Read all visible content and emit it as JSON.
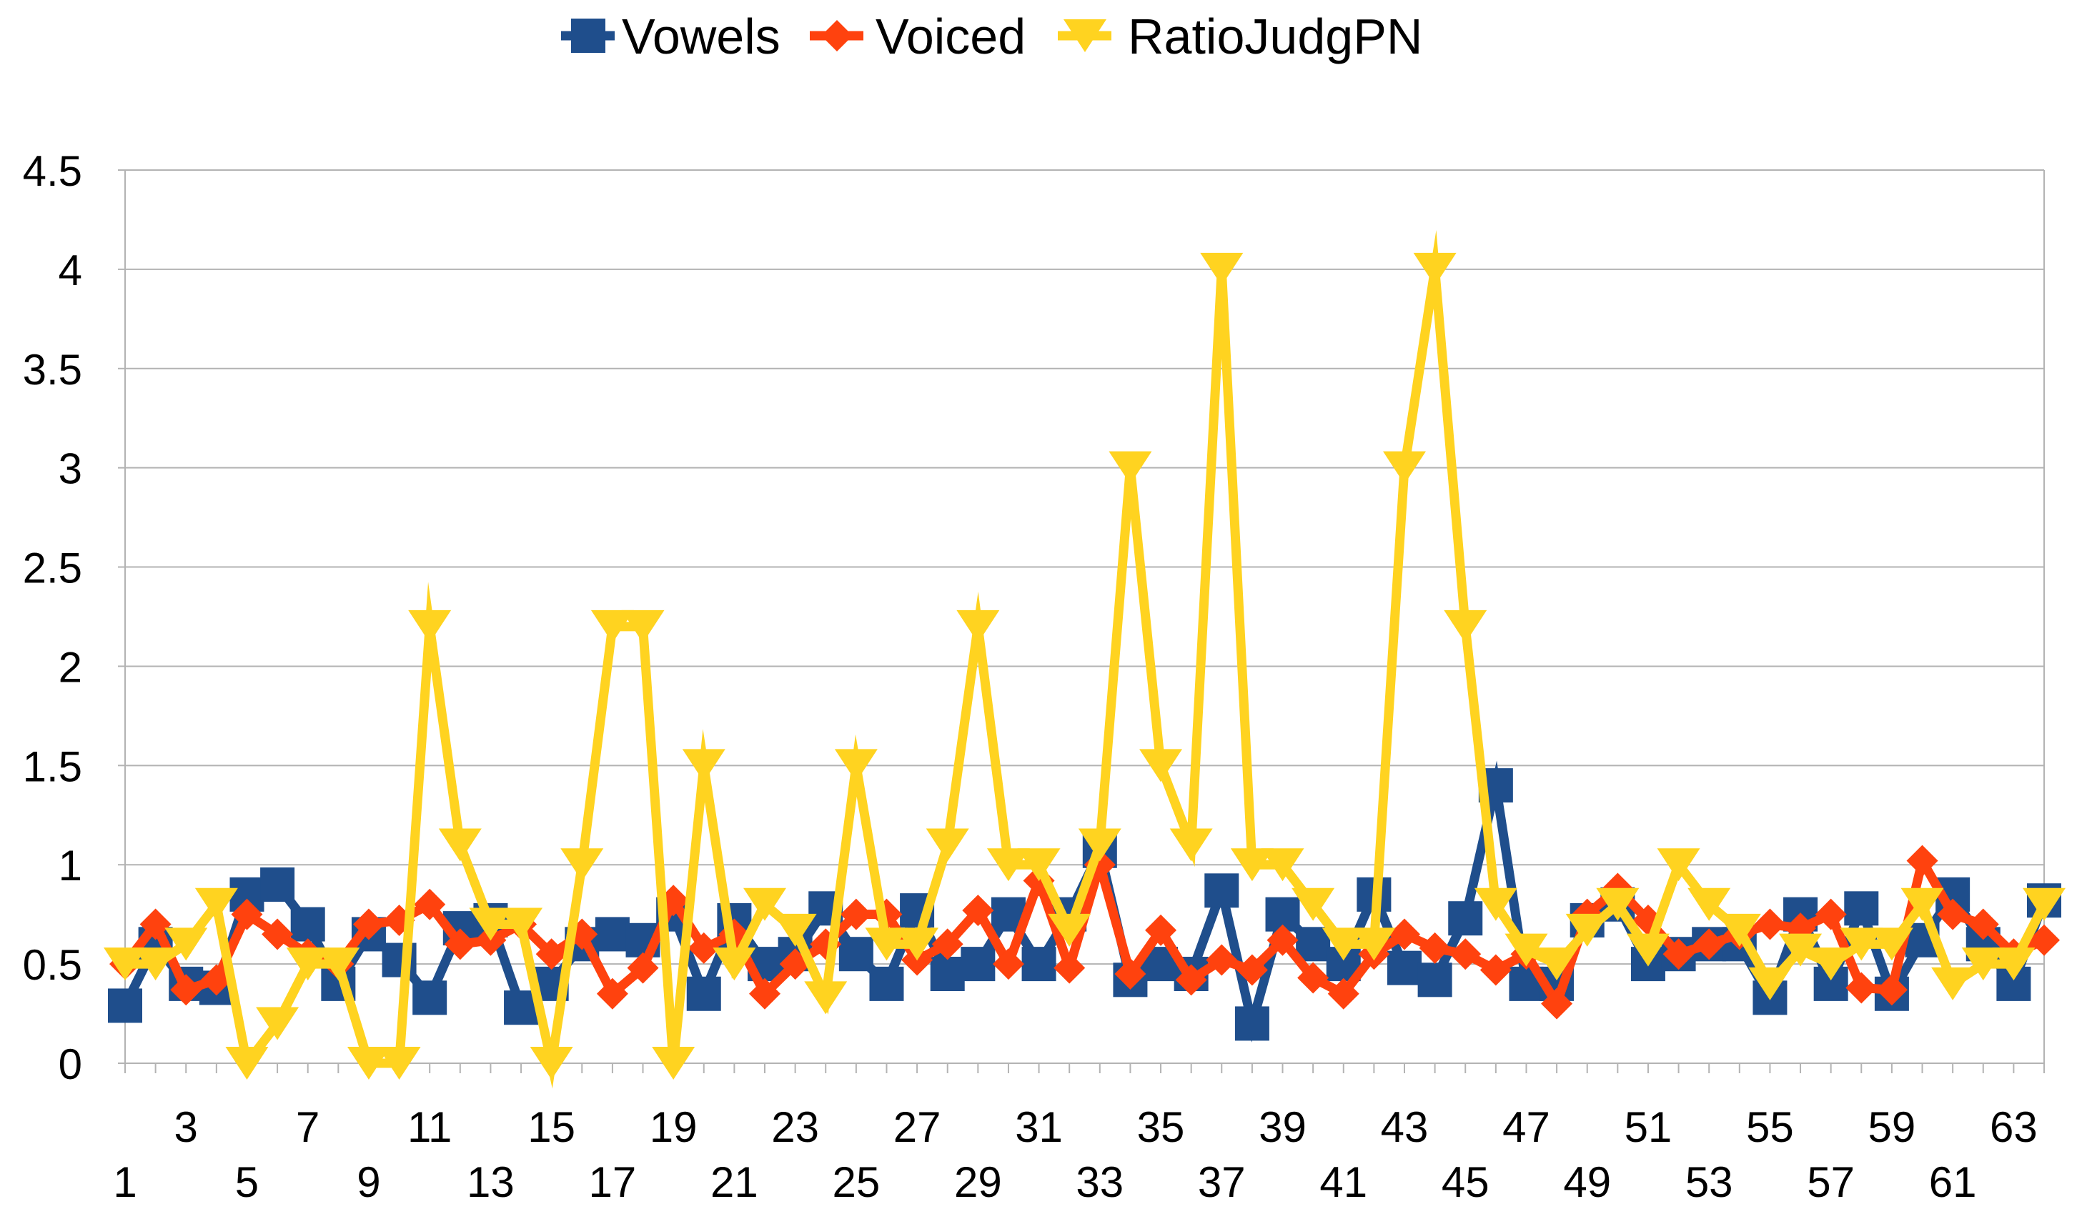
{
  "chart_data": {
    "type": "line",
    "title": "",
    "xlabel": "",
    "ylabel": "",
    "ylim": [
      0,
      4.5
    ],
    "yticks": [
      "0",
      "0.5",
      "1",
      "1.5",
      "2",
      "2.5",
      "3",
      "3.5",
      "4",
      "4.5"
    ],
    "ytick_values": [
      0,
      0.5,
      1,
      1.5,
      2,
      2.5,
      3,
      3.5,
      4,
      4.5
    ],
    "grid": true,
    "legend_position": "top-center",
    "x": [
      1,
      2,
      3,
      4,
      5,
      6,
      7,
      8,
      9,
      10,
      11,
      12,
      13,
      14,
      15,
      16,
      17,
      18,
      19,
      20,
      21,
      22,
      23,
      24,
      25,
      26,
      27,
      28,
      29,
      30,
      31,
      32,
      33,
      34,
      35,
      36,
      37,
      38,
      39,
      40,
      41,
      42,
      43,
      44,
      45,
      46,
      47,
      48,
      49,
      50,
      51,
      52,
      53,
      54,
      55,
      56,
      57,
      58,
      59,
      60,
      61,
      62,
      63,
      64
    ],
    "series": [
      {
        "name": "Vowels",
        "color": "#1f4e8c",
        "marker": "square",
        "values": [
          0.29,
          0.6,
          0.4,
          0.38,
          0.85,
          0.9,
          0.7,
          0.4,
          0.65,
          0.52,
          0.33,
          0.68,
          0.72,
          0.28,
          0.4,
          0.6,
          0.65,
          0.62,
          0.75,
          0.35,
          0.72,
          0.5,
          0.55,
          0.78,
          0.55,
          0.4,
          0.77,
          0.45,
          0.5,
          0.75,
          0.5,
          0.75,
          1.07,
          0.42,
          0.5,
          0.45,
          0.87,
          0.2,
          0.75,
          0.6,
          0.5,
          0.85,
          0.48,
          0.42,
          0.73,
          1.4,
          0.4,
          0.4,
          0.72,
          0.8,
          0.5,
          0.55,
          0.6,
          0.6,
          0.33,
          0.75,
          0.4,
          0.78,
          0.35,
          0.62,
          0.85,
          0.6,
          0.4,
          0.82
        ]
      },
      {
        "name": "Voiced",
        "color": "#ff420e",
        "marker": "diamond",
        "values": [
          0.5,
          0.7,
          0.37,
          0.42,
          0.75,
          0.65,
          0.55,
          0.5,
          0.7,
          0.72,
          0.8,
          0.6,
          0.62,
          0.7,
          0.55,
          0.65,
          0.35,
          0.48,
          0.82,
          0.58,
          0.65,
          0.35,
          0.5,
          0.6,
          0.75,
          0.75,
          0.52,
          0.6,
          0.77,
          0.5,
          0.92,
          0.48,
          1.0,
          0.45,
          0.67,
          0.42,
          0.52,
          0.47,
          0.62,
          0.43,
          0.35,
          0.55,
          0.65,
          0.58,
          0.55,
          0.47,
          0.55,
          0.3,
          0.75,
          0.88,
          0.72,
          0.55,
          0.6,
          0.65,
          0.7,
          0.68,
          0.75,
          0.38,
          0.37,
          1.02,
          0.75,
          0.7,
          0.55,
          0.62
        ]
      },
      {
        "name": "RatioJudgPN",
        "color": "#ffd320",
        "marker": "triangle-down",
        "values": [
          0.5,
          0.5,
          0.6,
          0.8,
          0.0,
          0.2,
          0.5,
          0.5,
          0.0,
          0.0,
          2.2,
          1.1,
          0.7,
          0.7,
          0.0,
          1.0,
          2.2,
          2.2,
          0.0,
          1.5,
          0.5,
          0.8,
          0.67,
          0.33,
          1.5,
          0.6,
          0.6,
          1.1,
          2.2,
          1.0,
          1.0,
          0.67,
          1.1,
          3.0,
          1.5,
          1.1,
          4.0,
          1.0,
          1.0,
          0.8,
          0.6,
          0.6,
          3.0,
          4.0,
          2.2,
          0.8,
          0.57,
          0.5,
          0.67,
          0.8,
          0.57,
          1.0,
          0.8,
          0.67,
          0.4,
          0.57,
          0.5,
          0.6,
          0.6,
          0.8,
          0.4,
          0.5,
          0.5,
          0.8
        ]
      }
    ],
    "x_tick_labels_row1": [
      "3",
      "7",
      "11",
      "15",
      "19",
      "23",
      "27",
      "31",
      "35",
      "39",
      "43",
      "47",
      "51",
      "55",
      "59",
      "63"
    ],
    "x_tick_labels_row2": [
      "1",
      "5",
      "9",
      "13",
      "17",
      "21",
      "25",
      "29",
      "33",
      "37",
      "41",
      "45",
      "49",
      "53",
      "57",
      "61"
    ]
  }
}
